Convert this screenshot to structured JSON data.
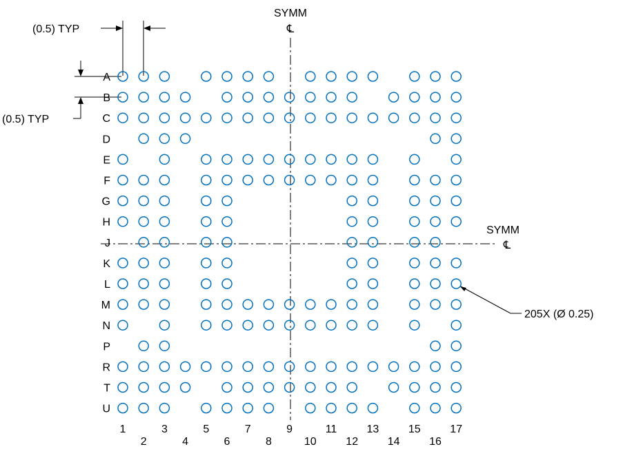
{
  "symm_vertical": {
    "label": "SYMM",
    "symbol": "℄"
  },
  "symm_horizontal": {
    "label": "SYMM",
    "symbol": "℄"
  },
  "dim_horizontal_pitch": "(0.5) TYP",
  "dim_vertical_pitch": "(0.5) TYP",
  "pad_callout": "205X (Ø 0.25)",
  "rows": [
    "A",
    "B",
    "C",
    "D",
    "E",
    "F",
    "G",
    "H",
    "J",
    "K",
    "L",
    "M",
    "N",
    "P",
    "R",
    "T",
    "U"
  ],
  "columns": [
    "1",
    "2",
    "3",
    "4",
    "5",
    "6",
    "7",
    "8",
    "9",
    "10",
    "11",
    "12",
    "13",
    "14",
    "15",
    "16",
    "17"
  ],
  "pad_map": [
    "11101111011110111",
    "11110111111101111",
    "11111111111111111",
    "01110000000000011",
    "10101111111110101",
    "11101111111110111",
    "11101100000110111",
    "11101100000110111",
    "01101100000110110",
    "11101100000110111",
    "11101100000110111",
    "11101111111110111",
    "10101111111110101",
    "01100000000000011",
    "11111111111111111",
    "11110111111101111",
    "11101111011110111"
  ],
  "colors": {
    "pad": "#0070c0",
    "lines": "#000000"
  }
}
